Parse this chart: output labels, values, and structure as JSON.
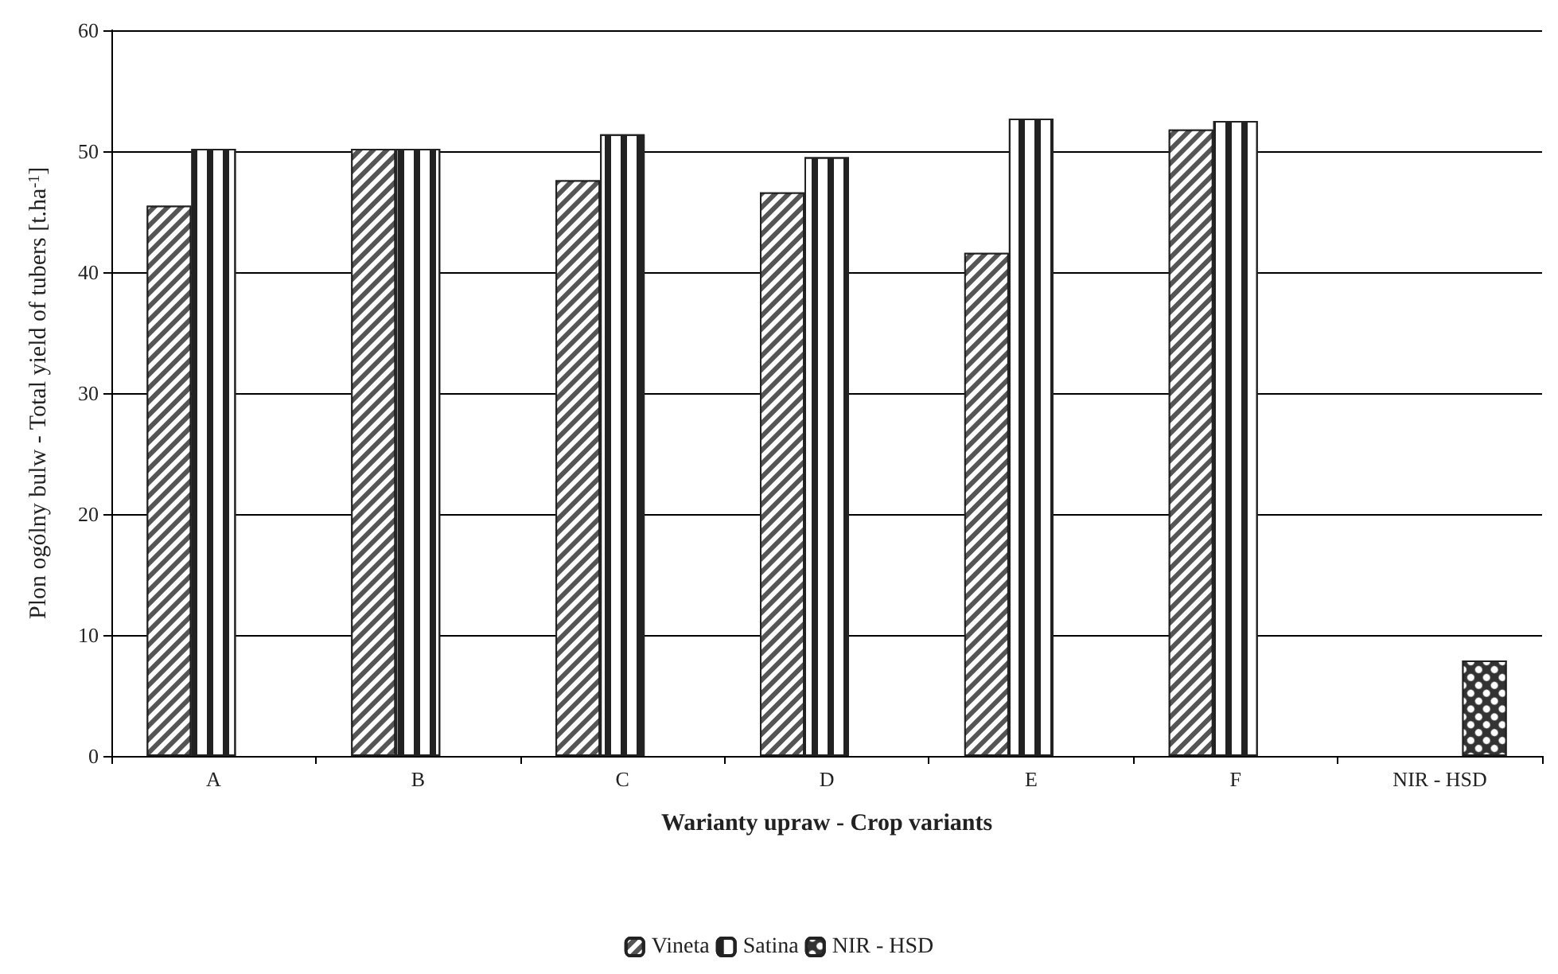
{
  "chart_data": {
    "type": "bar",
    "xlabel": "Warianty upraw - Crop variants",
    "ylabel": "Plon ogólny bulw - Total yield of tubers [t.ha$^{-1}$]",
    "categories": [
      "A",
      "B",
      "C",
      "D",
      "E",
      "F",
      "NIR - HSD"
    ],
    "series": [
      {
        "name": "Vineta",
        "color": "#555555",
        "values": [
          45.5,
          50.2,
          47.6,
          46.6,
          41.6,
          51.8,
          null
        ]
      },
      {
        "name": "Satina",
        "color": "#ffffff",
        "values": [
          50.2,
          50.2,
          51.4,
          49.5,
          52.7,
          52.5,
          null
        ]
      },
      {
        "name": "NIR - HSD",
        "color": "#333333",
        "values": [
          null,
          null,
          null,
          null,
          null,
          null,
          7.9
        ]
      }
    ],
    "ylim": [
      0,
      60
    ],
    "yticks": [
      0,
      10,
      20,
      30,
      40,
      50,
      60
    ],
    "grid": "y",
    "legend": "bottom"
  }
}
